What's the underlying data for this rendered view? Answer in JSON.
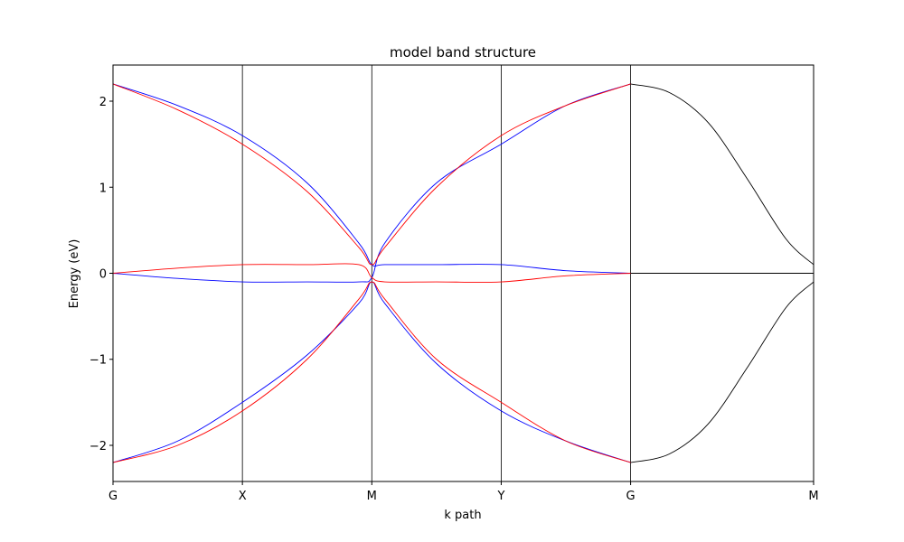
{
  "chart_data": {
    "type": "line",
    "title": "model band structure",
    "xlabel": "k path",
    "ylabel": "Energy (eV)",
    "xlim": [
      0,
      5.414
    ],
    "ylim": [
      -2.42,
      2.42
    ],
    "grid": false,
    "legend": "none",
    "x_ticks": [
      {
        "pos": 0,
        "label": "G"
      },
      {
        "pos": 1,
        "label": "X"
      },
      {
        "pos": 2,
        "label": "M"
      },
      {
        "pos": 3,
        "label": "Y"
      },
      {
        "pos": 4,
        "label": "G"
      },
      {
        "pos": 5.414,
        "label": "M"
      }
    ],
    "y_ticks": [
      {
        "value": 2,
        "label": "2"
      },
      {
        "value": 1,
        "label": "1"
      },
      {
        "value": 0,
        "label": "0"
      },
      {
        "value": -1,
        "label": "−1"
      },
      {
        "value": -2,
        "label": "−2"
      }
    ],
    "vlines": [
      1,
      2,
      3,
      4
    ],
    "colors": {
      "blue": "#0000ff",
      "red": "#ff0000",
      "black": "#000000"
    },
    "series": [
      {
        "color": "#0000ff",
        "x": [
          0,
          0.5,
          1,
          1.5,
          1.9,
          2,
          2.1,
          2.5,
          3,
          3.5,
          4
        ],
        "y": [
          2.2,
          1.95,
          1.6,
          1.05,
          0.35,
          0.1,
          0.1,
          0.1,
          0.1,
          0.03,
          0
        ]
      },
      {
        "color": "#0000ff",
        "x": [
          0,
          0.5,
          1,
          1.5,
          1.9,
          2,
          2.1,
          2.5,
          3,
          3.5,
          4
        ],
        "y": [
          0,
          -0.06,
          -0.1,
          -0.1,
          -0.1,
          -0.05,
          0.35,
          1.05,
          1.5,
          1.95,
          2.2
        ]
      },
      {
        "color": "#0000ff",
        "x": [
          0,
          0.5,
          1,
          1.5,
          1.9,
          2,
          2.1,
          2.5,
          3,
          3.5,
          4
        ],
        "y": [
          -2.2,
          -1.95,
          -1.5,
          -0.95,
          -0.35,
          -0.1,
          -0.35,
          -1.05,
          -1.6,
          -1.95,
          -2.2
        ]
      },
      {
        "color": "#ff0000",
        "x": [
          0,
          0.5,
          1,
          1.5,
          1.9,
          2,
          2.1,
          2.5,
          3,
          3.5,
          4
        ],
        "y": [
          2.2,
          1.9,
          1.5,
          0.95,
          0.3,
          0.1,
          0.3,
          1.0,
          1.6,
          1.95,
          2.2
        ]
      },
      {
        "color": "#ff0000",
        "x": [
          0,
          0.5,
          1,
          1.5,
          1.9,
          2,
          2.1,
          2.5,
          3,
          3.5,
          4
        ],
        "y": [
          0,
          0.06,
          0.1,
          0.1,
          0.1,
          -0.05,
          -0.1,
          -0.1,
          -0.1,
          -0.03,
          0
        ]
      },
      {
        "color": "#ff0000",
        "x": [
          0,
          0.5,
          1,
          1.5,
          1.9,
          2,
          2.1,
          2.5,
          3,
          3.5,
          4
        ],
        "y": [
          -2.2,
          -2.0,
          -1.6,
          -1.0,
          -0.3,
          -0.1,
          -0.3,
          -1.0,
          -1.5,
          -1.95,
          -2.2
        ]
      },
      {
        "color": "#000000",
        "x": [
          4,
          4.3,
          4.6,
          4.9,
          5.2,
          5.414
        ],
        "y": [
          2.2,
          2.1,
          1.75,
          1.1,
          0.4,
          0.1
        ]
      },
      {
        "color": "#000000",
        "x": [
          4,
          4.3,
          4.6,
          4.9,
          5.2,
          5.414
        ],
        "y": [
          0,
          0,
          0,
          0,
          0,
          0
        ]
      },
      {
        "color": "#000000",
        "x": [
          4,
          4.3,
          4.6,
          4.9,
          5.2,
          5.414
        ],
        "y": [
          -2.2,
          -2.1,
          -1.75,
          -1.1,
          -0.4,
          -0.1
        ]
      }
    ]
  }
}
